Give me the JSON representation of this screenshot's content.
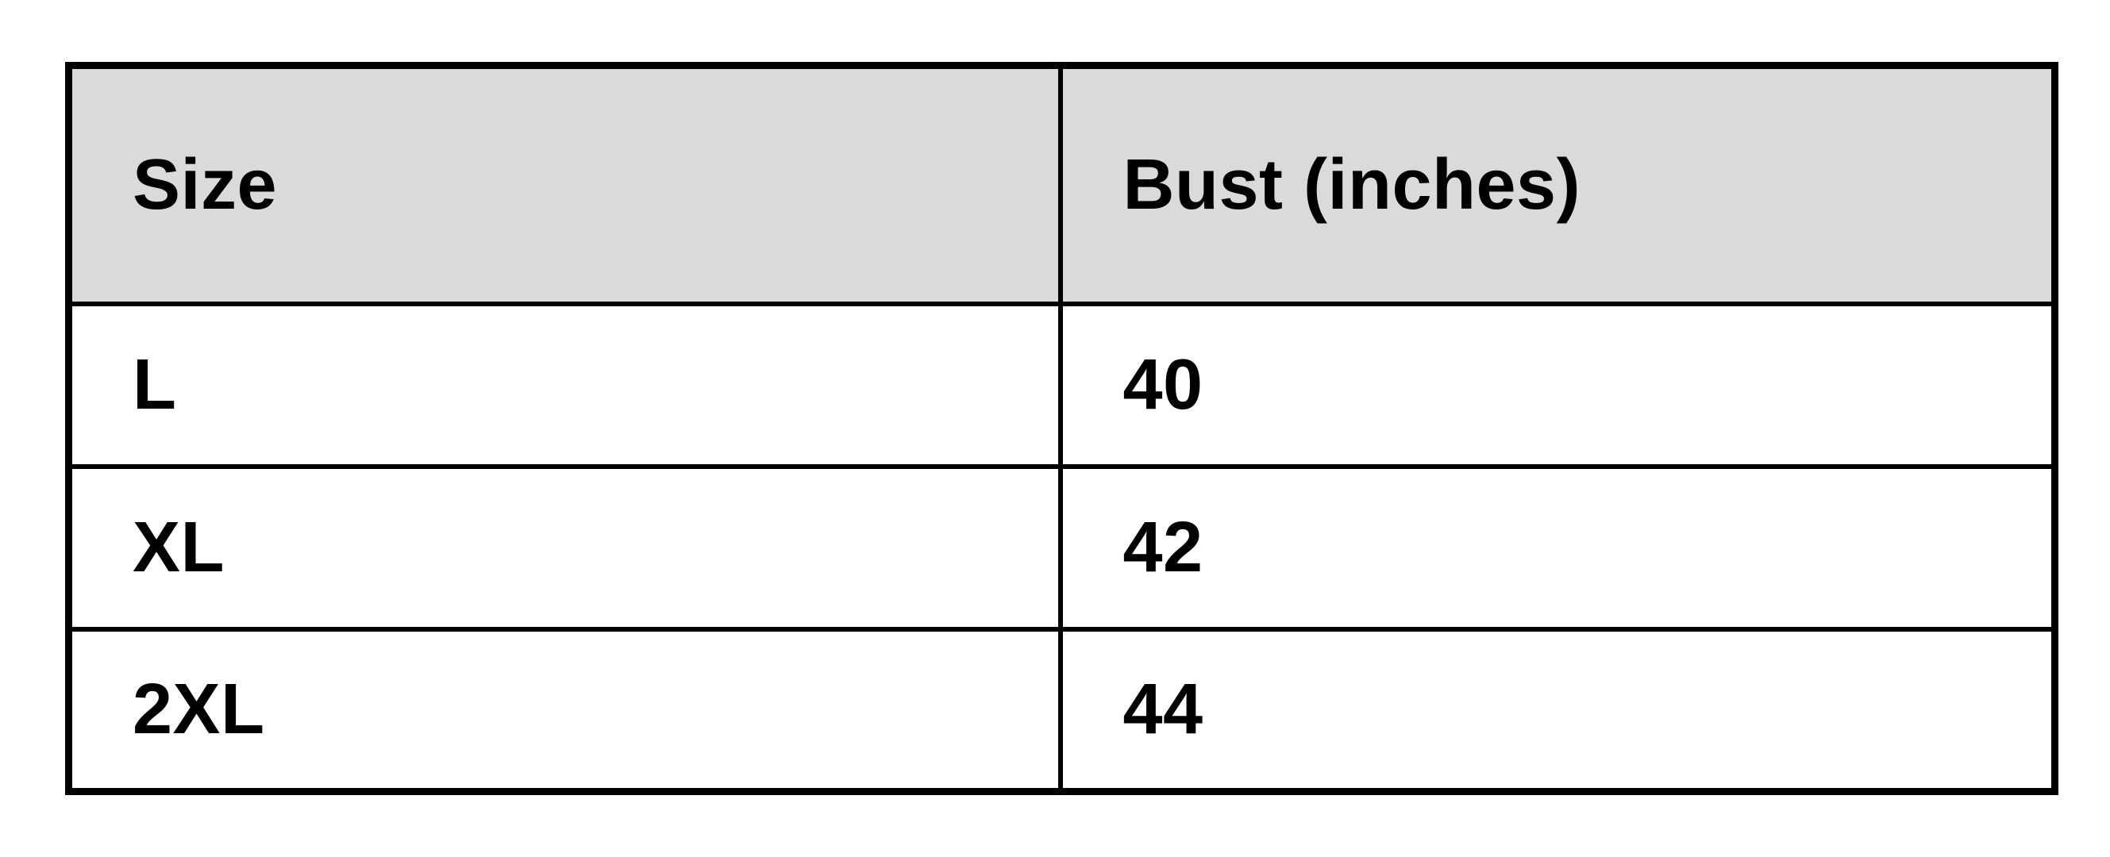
{
  "chart_data": {
    "type": "table",
    "columns": [
      "Size",
      "Bust (inches)"
    ],
    "rows": [
      [
        "L",
        "40"
      ],
      [
        "XL",
        "42"
      ],
      [
        "2XL",
        "44"
      ]
    ]
  },
  "colors": {
    "header_background": "#dadada",
    "border": "#000000",
    "text": "#000000",
    "page_background": "#ffffff"
  }
}
